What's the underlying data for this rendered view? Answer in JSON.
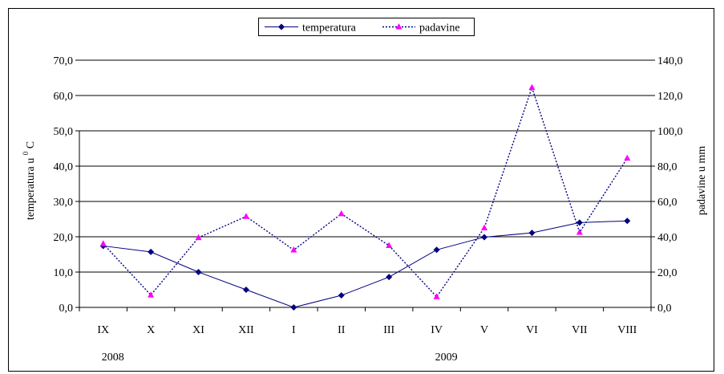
{
  "chart_data": {
    "type": "line",
    "categories": [
      "IX",
      "X",
      "XI",
      "XII",
      "I",
      "II",
      "III",
      "IV",
      "V",
      "VI",
      "VII",
      "VIII"
    ],
    "year_labels": [
      {
        "label": "2008",
        "category": "IX"
      },
      {
        "label": "2009",
        "category": "IV"
      }
    ],
    "series": [
      {
        "name": "temperatura",
        "axis": "left",
        "style": "solid",
        "color": "#000080",
        "marker": "diamond",
        "values": [
          17.4,
          15.7,
          10.0,
          5.0,
          0.0,
          3.4,
          8.6,
          16.3,
          19.9,
          21.1,
          24.0,
          24.5
        ]
      },
      {
        "name": "padavine",
        "axis": "right",
        "style": "dotted",
        "color": "#000080",
        "marker": "triangle",
        "marker_color": "#ff00ff",
        "values": [
          36.0,
          7.0,
          39.5,
          51.5,
          32.5,
          53.0,
          35.0,
          6.0,
          45.0,
          124.5,
          42.5,
          84.5
        ]
      }
    ],
    "ylabel": "temperatura u",
    "ylabel_sup": "0",
    "ylabel_suffix": "C",
    "y2label": "padavine u mm",
    "ylim": [
      0,
      70
    ],
    "yticks": [
      "0,0",
      "10,0",
      "20,0",
      "30,0",
      "40,0",
      "50,0",
      "60,0",
      "70,0"
    ],
    "y2lim": [
      0,
      140
    ],
    "y2ticks": [
      "0,0",
      "20,0",
      "40,0",
      "60,0",
      "80,0",
      "100,0",
      "120,0",
      "140,0"
    ],
    "grid": true,
    "legend": "top-center"
  }
}
